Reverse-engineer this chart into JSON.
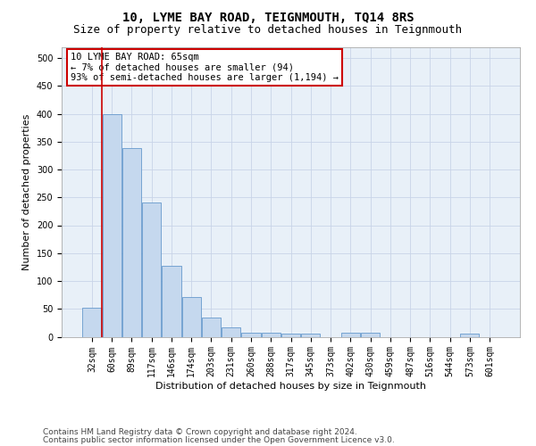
{
  "title": "10, LYME BAY ROAD, TEIGNMOUTH, TQ14 8RS",
  "subtitle": "Size of property relative to detached houses in Teignmouth",
  "xlabel": "Distribution of detached houses by size in Teignmouth",
  "ylabel": "Number of detached properties",
  "bar_labels": [
    "32sqm",
    "60sqm",
    "89sqm",
    "117sqm",
    "146sqm",
    "174sqm",
    "203sqm",
    "231sqm",
    "260sqm",
    "288sqm",
    "317sqm",
    "345sqm",
    "373sqm",
    "402sqm",
    "430sqm",
    "459sqm",
    "487sqm",
    "516sqm",
    "544sqm",
    "573sqm",
    "601sqm"
  ],
  "bar_values": [
    52,
    400,
    338,
    241,
    128,
    72,
    35,
    17,
    8,
    8,
    5,
    5,
    0,
    7,
    7,
    0,
    0,
    0,
    0,
    5,
    0
  ],
  "bar_color": "#c5d8ee",
  "bar_edge_color": "#6699cc",
  "vline_color": "#cc0000",
  "annotation_text": "10 LYME BAY ROAD: 65sqm\n← 7% of detached houses are smaller (94)\n93% of semi-detached houses are larger (1,194) →",
  "annotation_box_color": "#ffffff",
  "annotation_box_edge_color": "#cc0000",
  "ylim": [
    0,
    520
  ],
  "yticks": [
    0,
    50,
    100,
    150,
    200,
    250,
    300,
    350,
    400,
    450,
    500
  ],
  "footer1": "Contains HM Land Registry data © Crown copyright and database right 2024.",
  "footer2": "Contains public sector information licensed under the Open Government Licence v3.0.",
  "bg_color": "#ffffff",
  "grid_color": "#c8d4e8",
  "title_fontsize": 10,
  "subtitle_fontsize": 9,
  "axis_label_fontsize": 8,
  "tick_fontsize": 7,
  "annotation_fontsize": 7.5,
  "footer_fontsize": 6.5
}
